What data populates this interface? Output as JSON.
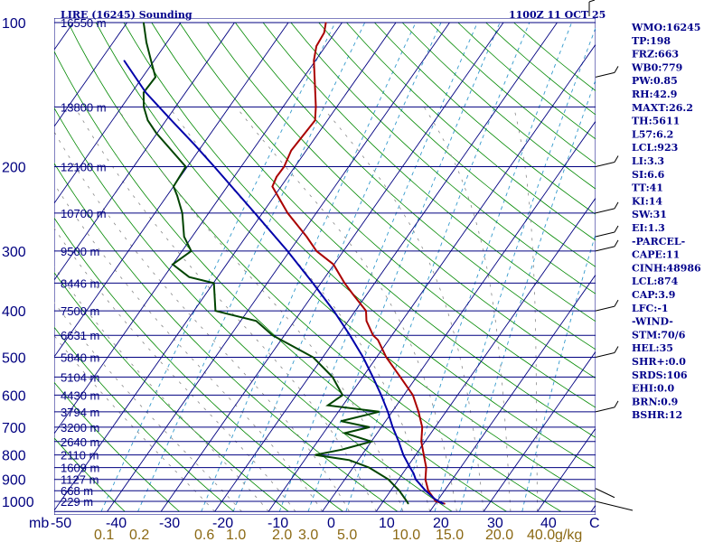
{
  "title_left": "LIRE (16245) Sounding",
  "title_right": "1100Z 11 OCT 25",
  "chart_data": {
    "type": "skew-t",
    "pressure_axis": {
      "unit": "mb",
      "ticks": [
        100,
        200,
        300,
        400,
        500,
        600,
        700,
        800,
        900,
        1000
      ],
      "range": [
        1050,
        100
      ],
      "scale": "log"
    },
    "temperature_axis": {
      "unit": "C",
      "ticks": [
        -50,
        -40,
        -30,
        -20,
        -10,
        0,
        10,
        20,
        30,
        40
      ]
    },
    "mixing_ratio_axis": {
      "unit": "g/kg",
      "ticks": [
        "0.1",
        "0.2",
        "0.6",
        "1.0",
        "2.0",
        "3.0",
        "5.0",
        "10.0",
        "15.0",
        "20.0",
        "40.0"
      ]
    },
    "height_labels": [
      {
        "p": 100,
        "label": "16550 m"
      },
      {
        "p": 150,
        "label": "13800 m"
      },
      {
        "p": 200,
        "label": "12100 m"
      },
      {
        "p": 250,
        "label": "10700 m"
      },
      {
        "p": 300,
        "label": "9500 m"
      },
      {
        "p": 350,
        "label": "8446 m"
      },
      {
        "p": 400,
        "label": "7500 m"
      },
      {
        "p": 450,
        "label": "6631 m"
      },
      {
        "p": 500,
        "label": "5840 m"
      },
      {
        "p": 550,
        "label": "5104 m"
      },
      {
        "p": 600,
        "label": "4430 m"
      },
      {
        "p": 650,
        "label": "3794 m"
      },
      {
        "p": 700,
        "label": "3200 m"
      },
      {
        "p": 750,
        "label": "2640 m"
      },
      {
        "p": 800,
        "label": "2110 m"
      },
      {
        "p": 850,
        "label": "1609 m"
      },
      {
        "p": 900,
        "label": "1127 m"
      },
      {
        "p": 950,
        "label": "668 m"
      },
      {
        "p": 1000,
        "label": "229 m"
      }
    ],
    "series": [
      {
        "role": "temperature",
        "color": "#aa0000",
        "points": [
          {
            "p": 1012,
            "t": 21.8
          },
          {
            "p": 1000,
            "t": 19.8
          },
          {
            "p": 950,
            "t": 17.0
          },
          {
            "p": 900,
            "t": 15.0
          },
          {
            "p": 850,
            "t": 13.6
          },
          {
            "p": 800,
            "t": 11.5
          },
          {
            "p": 750,
            "t": 9.3
          },
          {
            "p": 700,
            "t": 7.6
          },
          {
            "p": 650,
            "t": 4.9
          },
          {
            "p": 600,
            "t": 1.7
          },
          {
            "p": 550,
            "t": -3.0
          },
          {
            "p": 500,
            "t": -8.2
          },
          {
            "p": 460,
            "t": -12.0
          },
          {
            "p": 450,
            "t": -13.5
          },
          {
            "p": 420,
            "t": -16.6
          },
          {
            "p": 400,
            "t": -18.0
          },
          {
            "p": 370,
            "t": -22.5
          },
          {
            "p": 350,
            "t": -25.6
          },
          {
            "p": 320,
            "t": -30.1
          },
          {
            "p": 300,
            "t": -35.0
          },
          {
            "p": 280,
            "t": -38.7
          },
          {
            "p": 250,
            "t": -45.3
          },
          {
            "p": 220,
            "t": -51.6
          },
          {
            "p": 210,
            "t": -52.1
          },
          {
            "p": 200,
            "t": -52.0
          },
          {
            "p": 185,
            "t": -52.8
          },
          {
            "p": 160,
            "t": -52.3
          },
          {
            "p": 150,
            "t": -53.9
          },
          {
            "p": 130,
            "t": -58.0
          },
          {
            "p": 120,
            "t": -60.3
          },
          {
            "p": 112,
            "t": -61.7
          },
          {
            "p": 105,
            "t": -62.0
          },
          {
            "p": 100,
            "t": -63.0
          }
        ]
      },
      {
        "role": "dewpoint",
        "color": "#004400",
        "points": [
          {
            "p": 1012,
            "t": 15.0
          },
          {
            "p": 1000,
            "t": 14.4
          },
          {
            "p": 950,
            "t": 11.6
          },
          {
            "p": 900,
            "t": 8.1
          },
          {
            "p": 850,
            "t": 3.0
          },
          {
            "p": 820,
            "t": -1.7
          },
          {
            "p": 800,
            "t": -8.7
          },
          {
            "p": 780,
            "t": -4.5
          },
          {
            "p": 750,
            "t": 0.0
          },
          {
            "p": 720,
            "t": -6.0
          },
          {
            "p": 700,
            "t": -2.2
          },
          {
            "p": 680,
            "t": -8.3
          },
          {
            "p": 650,
            "t": -2.4
          },
          {
            "p": 630,
            "t": -12.8
          },
          {
            "p": 600,
            "t": -11.4
          },
          {
            "p": 550,
            "t": -15.6
          },
          {
            "p": 500,
            "t": -21.8
          },
          {
            "p": 450,
            "t": -32.2
          },
          {
            "p": 420,
            "t": -37.1
          },
          {
            "p": 400,
            "t": -46.0
          },
          {
            "p": 350,
            "t": -49.9
          },
          {
            "p": 340,
            "t": -55.3
          },
          {
            "p": 320,
            "t": -60.0
          },
          {
            "p": 300,
            "t": -58.3
          },
          {
            "p": 280,
            "t": -61.5
          },
          {
            "p": 250,
            "t": -64.9
          },
          {
            "p": 230,
            "t": -68.1
          },
          {
            "p": 220,
            "t": -70.0
          },
          {
            "p": 200,
            "t": -70.3
          },
          {
            "p": 170,
            "t": -80.2
          },
          {
            "p": 160,
            "t": -83.4
          },
          {
            "p": 150,
            "t": -85.9
          },
          {
            "p": 140,
            "t": -87.8
          },
          {
            "p": 130,
            "t": -87.6
          },
          {
            "p": 120,
            "t": -90.6
          },
          {
            "p": 110,
            "t": -93.8
          },
          {
            "p": 100,
            "t": -96.9
          }
        ]
      },
      {
        "role": "parcel",
        "color": "#0000aa",
        "points": [
          {
            "p": 1012,
            "t": 21.5
          },
          {
            "p": 990,
            "t": 19.4
          },
          {
            "p": 950,
            "t": 16.5
          },
          {
            "p": 900,
            "t": 13.2
          },
          {
            "p": 874,
            "t": 12.0
          },
          {
            "p": 850,
            "t": 10.6
          },
          {
            "p": 800,
            "t": 7.7
          },
          {
            "p": 750,
            "t": 5.1
          },
          {
            "p": 700,
            "t": 2.1
          },
          {
            "p": 650,
            "t": -0.8
          },
          {
            "p": 600,
            "t": -4.2
          },
          {
            "p": 550,
            "t": -8.1
          },
          {
            "p": 500,
            "t": -12.5
          },
          {
            "p": 450,
            "t": -17.8
          },
          {
            "p": 400,
            "t": -24.0
          },
          {
            "p": 350,
            "t": -31.5
          },
          {
            "p": 300,
            "t": -40.4
          },
          {
            "p": 250,
            "t": -51.4
          },
          {
            "p": 200,
            "t": -65.0
          },
          {
            "p": 180,
            "t": -71.5
          },
          {
            "p": 160,
            "t": -79.0
          },
          {
            "p": 140,
            "t": -87.4
          },
          {
            "p": 120,
            "t": -95.6
          }
        ]
      }
    ],
    "wind_barbs": [
      {
        "p": 98
      },
      {
        "p": 130
      },
      {
        "p": 200
      },
      {
        "p": 250
      },
      {
        "p": 280
      },
      {
        "p": 300
      },
      {
        "p": 400
      },
      {
        "p": 500
      },
      {
        "p": 650
      },
      {
        "p": 900
      },
      {
        "p": 1000
      }
    ]
  },
  "indices": [
    "WMO:16245",
    "TP:198",
    "FRZ:663",
    "WB0:779",
    "PW:0.85",
    "RH:42.9",
    "MAXT:26.2",
    "TH:5611",
    "L57:6.2",
    "LCL:923",
    "LI:3.3",
    "SI:6.6",
    "TT:41",
    "KI:14",
    "SW:31",
    "EI:1.3",
    "-PARCEL-",
    "CAPE:11",
    "CINH:48986",
    "LCL:874",
    "CAP:3.9",
    "LFC:-1",
    "-WIND-",
    "STM:70/6",
    "HEL:35",
    "SHR+:0.0",
    "SRDS:106",
    "EHI:0.0",
    "BRN:0.9",
    "BSHR:12"
  ],
  "colors": {
    "isobar": "#000080",
    "isotherm": "#000080",
    "dry_adiabat": "#008800",
    "moist_adiabat": "#888888",
    "mixing_ratio": "#3399cc",
    "temperature": "#aa0000",
    "dewpoint": "#004400",
    "parcel": "#0000aa",
    "label_text": "#000080",
    "mixing_label": "#8b6914"
  }
}
